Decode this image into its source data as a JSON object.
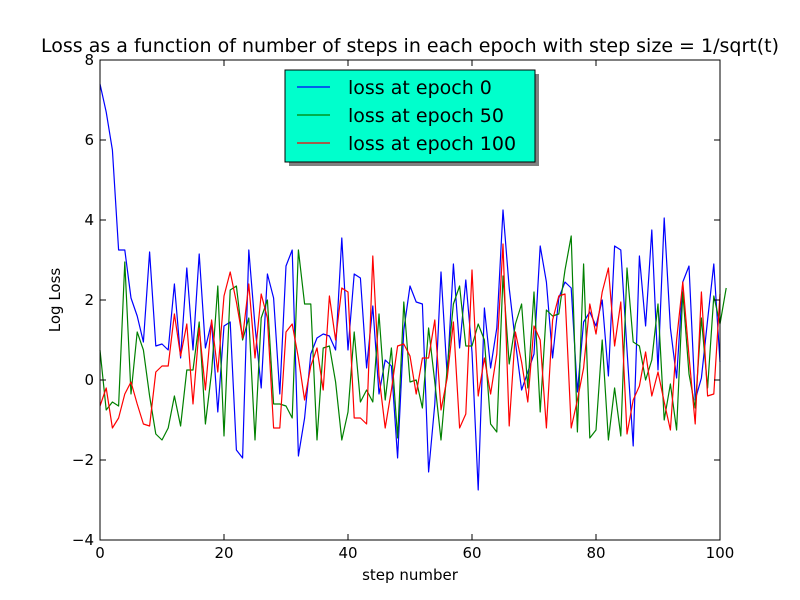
{
  "chart_data": {
    "type": "line",
    "title": "Loss as a function of number of steps in each epoch with step size = 1/sqrt(t)",
    "xlabel": "step number",
    "ylabel": "Log Loss",
    "xlim": [
      0,
      100
    ],
    "ylim": [
      -4,
      8
    ],
    "xticks": [
      0,
      20,
      40,
      60,
      80,
      100
    ],
    "yticks": [
      -4,
      -2,
      0,
      2,
      4,
      6,
      8
    ],
    "grid": false,
    "legend_position": "upper center",
    "legend_bg": "#00ffcc",
    "series": [
      {
        "name": "loss at epoch 0",
        "color": "#0000ff",
        "values": [
          7.4,
          6.7,
          5.75,
          3.25,
          3.25,
          2.05,
          1.6,
          0.95,
          3.2,
          0.85,
          0.9,
          0.75,
          2.4,
          0.55,
          2.8,
          0.75,
          3.15,
          0.8,
          1.45,
          -0.8,
          1.35,
          1.45,
          -1.75,
          -1.95,
          3.25,
          1.35,
          -0.2,
          2.65,
          2.05,
          -0.35,
          2.85,
          3.25,
          -1.9,
          -0.95,
          0.65,
          1.05,
          1.15,
          1.1,
          0.75,
          3.55,
          0.75,
          2.65,
          2.55,
          0.3,
          1.85,
          -0.35,
          0.5,
          0.35,
          -1.95,
          1.25,
          2.35,
          1.95,
          1.9,
          -2.3,
          -0.6,
          2.7,
          0.1,
          2.9,
          0.8,
          2.5,
          0.7,
          -2.75,
          1.8,
          0.3,
          1.3,
          4.25,
          2.3,
          0.95,
          -0.25,
          0.2,
          0.65,
          3.35,
          2.45,
          0.55,
          2.05,
          2.45,
          2.3,
          -0.3,
          1.45,
          1.7,
          1.35,
          2.0,
          0.1,
          3.35,
          3.25,
          0.75,
          -1.65,
          3.1,
          1.35,
          3.75,
          0.25,
          4.05,
          1.3,
          0.05,
          2.45,
          2.85,
          -0.5,
          0.05,
          1.5,
          2.9,
          0.45
        ]
      },
      {
        "name": "loss at epoch 50",
        "color": "#008000",
        "values": [
          0.75,
          -0.75,
          -0.55,
          -0.65,
          2.95,
          -0.35,
          1.2,
          0.75,
          -0.4,
          -1.35,
          -1.5,
          -1.2,
          -0.4,
          -1.15,
          0.25,
          0.25,
          1.45,
          -1.1,
          0.2,
          2.35,
          -1.4,
          2.25,
          2.35,
          1.0,
          1.55,
          -1.5,
          1.55,
          2.0,
          -0.6,
          -0.6,
          -0.65,
          -0.95,
          3.25,
          1.9,
          1.9,
          -1.5,
          0.8,
          0.85,
          -0.05,
          -1.5,
          -0.8,
          1.2,
          -0.55,
          -0.25,
          -0.55,
          1.65,
          -0.5,
          0.8,
          -1.45,
          1.95,
          -0.05,
          0.0,
          -0.7,
          1.3,
          -0.05,
          -1.5,
          0.3,
          1.9,
          2.35,
          0.85,
          0.85,
          1.4,
          1.0,
          -1.1,
          -1.3,
          2.6,
          0.4,
          1.4,
          1.9,
          -0.2,
          2.2,
          -0.8,
          1.75,
          1.6,
          1.65,
          2.75,
          3.6,
          -1.3,
          2.9,
          -1.45,
          -1.25,
          1.0,
          -1.5,
          -0.2,
          -1.4,
          2.8,
          0.95,
          0.85,
          0.0,
          0.5,
          1.9,
          -1.0,
          -0.1,
          -1.25,
          2.2,
          0.15,
          -0.7,
          1.55,
          -0.2,
          2.1,
          1.4,
          2.3
        ]
      },
      {
        "name": "loss at epoch 100",
        "color": "#ff0000",
        "values": [
          -0.65,
          -0.2,
          -1.2,
          -0.95,
          -0.35,
          -0.05,
          -0.6,
          -1.1,
          -1.15,
          0.2,
          0.35,
          0.35,
          1.65,
          0.6,
          1.4,
          -0.6,
          1.3,
          -0.25,
          1.5,
          0.2,
          2.1,
          2.7,
          1.95,
          1.05,
          2.4,
          0.55,
          2.15,
          1.55,
          -1.2,
          -1.2,
          1.2,
          1.4,
          0.55,
          -0.5,
          0.35,
          0.8,
          -0.25,
          2.1,
          1.0,
          2.3,
          2.2,
          -0.95,
          -0.95,
          -1.1,
          3.1,
          0.1,
          -1.2,
          -0.25,
          0.85,
          0.9,
          0.6,
          -0.35,
          0.55,
          0.55,
          1.5,
          -0.75,
          0.05,
          1.45,
          -1.2,
          -0.85,
          2.75,
          -0.4,
          0.55,
          -0.35,
          0.65,
          3.4,
          -1.15,
          1.2,
          0.45,
          -0.55,
          1.35,
          1.0,
          -1.2,
          1.5,
          2.1,
          2.15,
          -1.2,
          -0.5,
          0.3,
          1.9,
          1.15,
          2.2,
          2.8,
          0.85,
          1.95,
          -1.35,
          -0.5,
          -0.15,
          0.7,
          -0.4,
          0.2,
          -0.55,
          -1.25,
          1.0,
          2.45,
          0.6,
          -1.1,
          2.2,
          -0.4,
          -0.35,
          2.15
        ]
      }
    ]
  }
}
